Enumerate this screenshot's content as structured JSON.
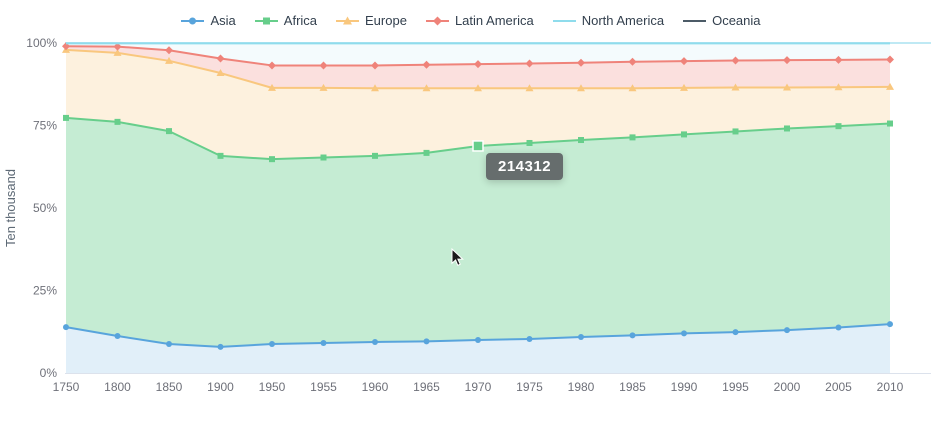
{
  "legend": {
    "items": [
      {
        "label": "Asia",
        "color": "#58A4DC",
        "marker": "circle"
      },
      {
        "label": "Africa",
        "color": "#67CE8B",
        "marker": "square"
      },
      {
        "label": "Europe",
        "color": "#F9C77E",
        "marker": "triangle"
      },
      {
        "label": "Latin America",
        "color": "#EF837A",
        "marker": "diamond"
      },
      {
        "label": "North America",
        "color": "#8FDCEC",
        "marker": "line"
      },
      {
        "label": "Oceania",
        "color": "#4C5B67",
        "marker": "line"
      }
    ]
  },
  "y_axis": {
    "title": "Ten thousand",
    "labels": [
      "0%",
      "25%",
      "50%",
      "75%",
      "100%"
    ]
  },
  "x_axis": {
    "labels": [
      "1750",
      "1800",
      "1850",
      "1900",
      "1950",
      "1955",
      "1960",
      "1965",
      "1970",
      "1975",
      "1980",
      "1985",
      "1990",
      "1995",
      "2000",
      "2005",
      "2010"
    ]
  },
  "tooltip": {
    "value": "214312"
  },
  "chart_data": {
    "type": "area",
    "stacked": true,
    "normalized": "percent",
    "title": "",
    "xlabel": "",
    "ylabel": "Ten thousand",
    "ylim": [
      0,
      100
    ],
    "legend_position": "top",
    "grid": false,
    "x": [
      1750,
      1800,
      1850,
      1900,
      1950,
      1955,
      1960,
      1965,
      1970,
      1975,
      1980,
      1985,
      1990,
      1995,
      2000,
      2005,
      2010
    ],
    "series": [
      {
        "name": "Asia",
        "color": "#58A4DC",
        "fill": "rgba(88,164,220,0.18)",
        "marker": "circle",
        "z": 1,
        "line_width": 2,
        "cumulative_percent": [
          13.9,
          11.2,
          8.8,
          7.9,
          8.8,
          9.1,
          9.4,
          9.6,
          10.0,
          10.3,
          10.9,
          11.4,
          12.0,
          12.4,
          13.0,
          13.8,
          14.8
        ]
      },
      {
        "name": "Africa",
        "color": "#67CE8B",
        "fill": "rgba(103,206,139,0.38)",
        "marker": "square",
        "z": 2,
        "line_width": 2,
        "cumulative_percent": [
          77.3,
          76.1,
          73.3,
          65.8,
          64.8,
          65.3,
          65.8,
          66.7,
          68.8,
          69.7,
          70.6,
          71.4,
          72.3,
          73.2,
          74.1,
          74.8,
          75.6
        ]
      },
      {
        "name": "Europe",
        "color": "#F9C77E",
        "fill": "rgba(249,199,126,0.26)",
        "marker": "triangle",
        "z": 3,
        "line_width": 2,
        "cumulative_percent": [
          97.9,
          97.0,
          94.6,
          90.9,
          86.4,
          86.4,
          86.3,
          86.3,
          86.3,
          86.3,
          86.3,
          86.3,
          86.4,
          86.5,
          86.5,
          86.6,
          86.7
        ]
      },
      {
        "name": "Latin America",
        "color": "#EF837A",
        "fill": "rgba(239,131,122,0.25)",
        "marker": "diamond",
        "z": 4,
        "line_width": 2,
        "cumulative_percent": [
          99.0,
          98.9,
          97.8,
          95.3,
          93.2,
          93.2,
          93.2,
          93.4,
          93.6,
          93.8,
          94.0,
          94.3,
          94.5,
          94.7,
          94.8,
          94.9,
          95.0
        ]
      },
      {
        "name": "North America",
        "color": "#8FDCEC",
        "fill": "rgba(143,220,236,0.10)",
        "marker": "line",
        "z": 6,
        "line_width": 2,
        "cumulative_percent": [
          99.9,
          99.9,
          99.9,
          99.9,
          99.9,
          99.9,
          99.9,
          99.9,
          99.9,
          99.9,
          99.9,
          99.9,
          99.9,
          99.9,
          99.9,
          99.9,
          99.9
        ]
      },
      {
        "name": "Oceania",
        "color": "#4C5B67",
        "fill": "rgba(76,91,103,0.15)",
        "marker": "line",
        "z": 5,
        "line_width": 1,
        "cumulative_percent": [
          100,
          100,
          100,
          100,
          100,
          100,
          100,
          100,
          100,
          100,
          100,
          100,
          100,
          100,
          100,
          100,
          100
        ]
      }
    ],
    "highlight": {
      "series": "Africa",
      "x": 1970,
      "value": 214312
    }
  }
}
